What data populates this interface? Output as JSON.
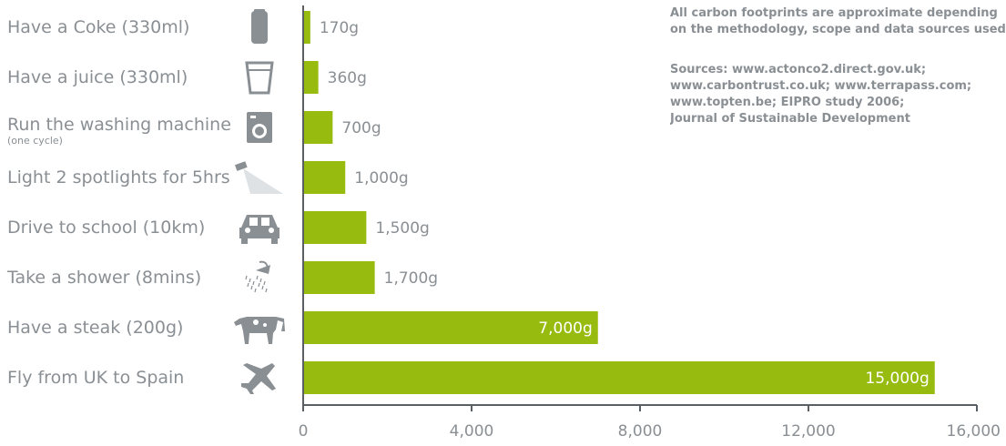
{
  "notes": {
    "line1": "All carbon footprints are approximate depending",
    "line2": "on  the methodology, scope and data sources used",
    "sources": [
      "Sources: www.actonco2.direct.gov.uk;",
      "www.carbontrust.co.uk; www.terrapass.com;",
      "www.topten.be; EIPRO study 2006;",
      "Journal of Sustainable Development"
    ]
  },
  "colors": {
    "bar": "#98bb0f",
    "text": "#8a8f94",
    "icon": "#8a8f94",
    "axis": "#5a5f64"
  },
  "chart_data": {
    "type": "bar",
    "orientation": "horizontal",
    "categories": [
      "Have a Coke (330ml)",
      "Have a juice (330ml)",
      "Run the washing machine",
      "Light 2 spotlights for 5hrs",
      "Drive to school (10km)",
      "Take a shower (8mins)",
      "Have a steak (200g)",
      "Fly from UK to Spain"
    ],
    "sublabels": [
      "",
      "",
      "(one cycle)",
      "",
      "",
      "",
      "",
      ""
    ],
    "icons": [
      "can-icon",
      "cup-icon",
      "washing-machine-icon",
      "spotlight-icon",
      "car-icon",
      "shower-icon",
      "cow-icon",
      "airplane-icon"
    ],
    "values": [
      170,
      360,
      700,
      1000,
      1500,
      1700,
      7000,
      15000
    ],
    "data_labels": [
      "170g",
      "360g",
      "700g",
      "1,000g",
      "1,500g",
      "1,700g",
      "7,000g",
      "15,000g"
    ],
    "xticks": [
      0,
      4000,
      8000,
      12000,
      16000
    ],
    "xtick_labels": [
      "0",
      "4,000",
      "8,000",
      "12,000",
      "16,000"
    ],
    "xlim": [
      0,
      16000
    ],
    "grid": false,
    "legend": "none"
  }
}
